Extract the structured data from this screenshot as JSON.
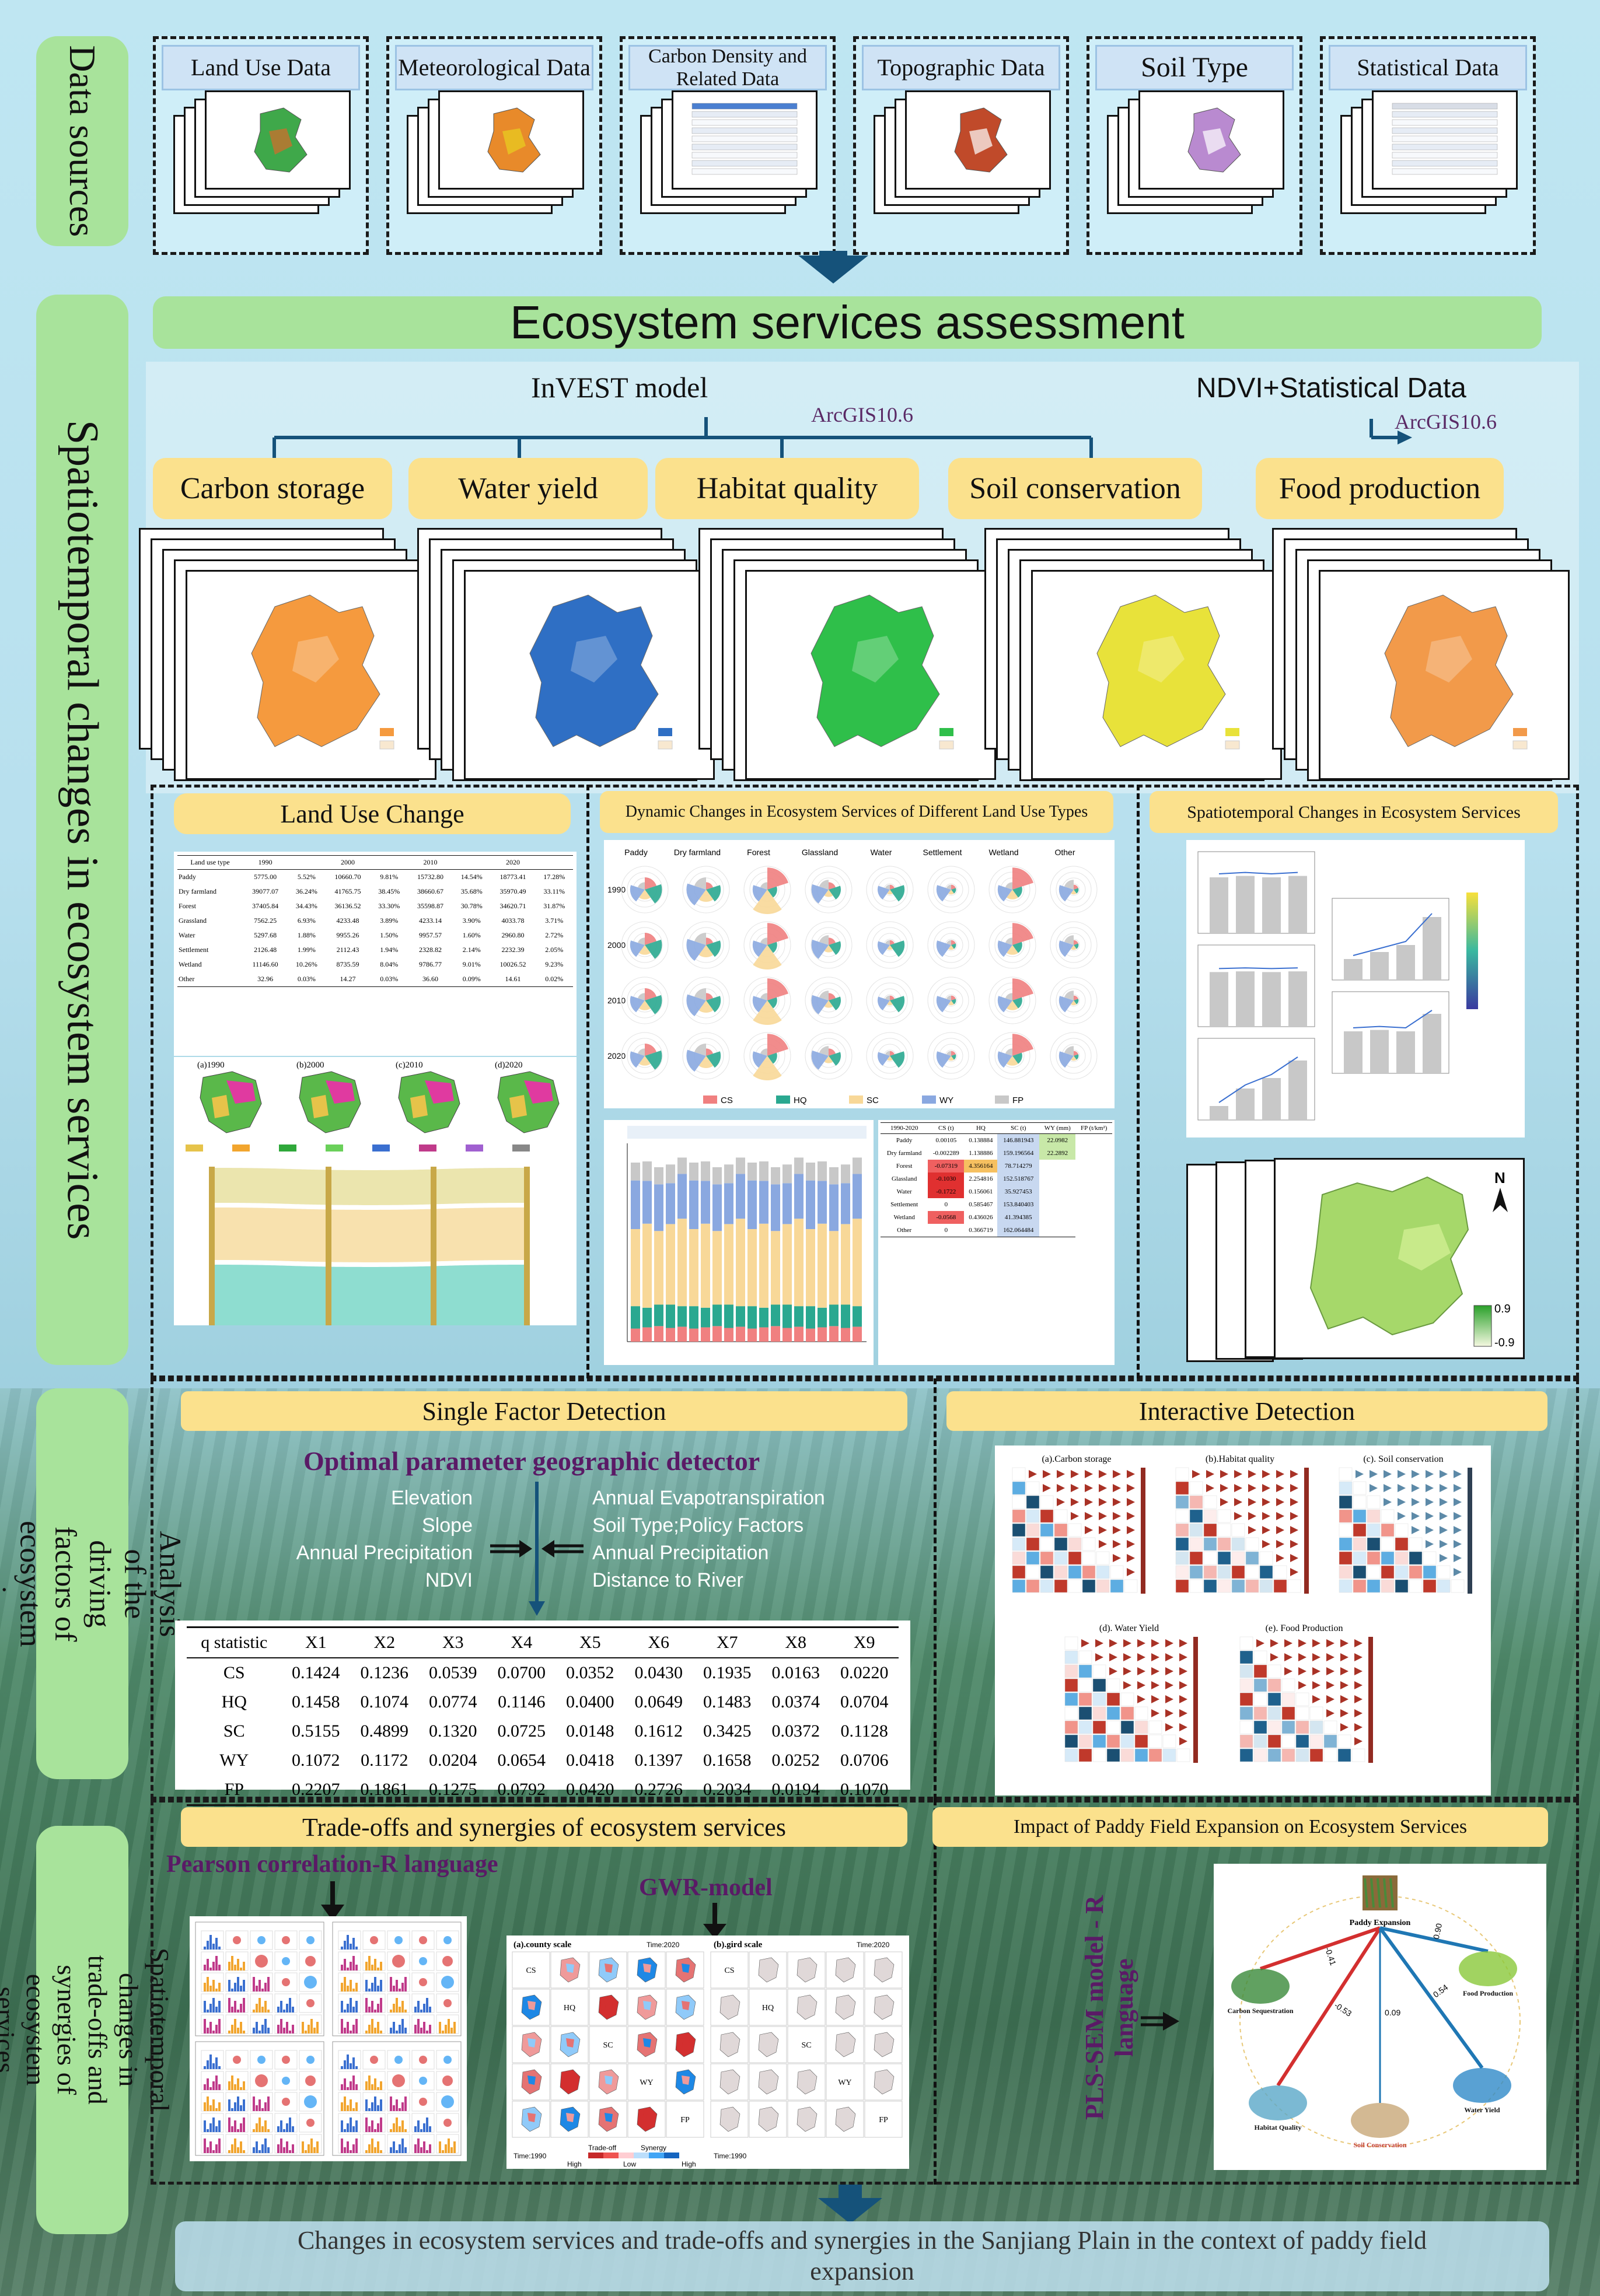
{
  "sidebar": {
    "data_sources": "Data sources",
    "spatiotemporal": "Spatiotemporal changes in ecosystem services",
    "driving_factors": "Analysis of the driving factors of ecosystem services",
    "tradeoffs": "Spatiotemporal changes in trade-offs and synergies of ecosystem services"
  },
  "data_sources": [
    {
      "label": "Land Use Data"
    },
    {
      "label": "Meteorological Data"
    },
    {
      "label": "Carbon Density and Related Data"
    },
    {
      "label": "Topographic Data"
    },
    {
      "label": "Soil Type"
    },
    {
      "label": "Statistical Data"
    }
  ],
  "assessment": {
    "title": "Ecosystem services assessment",
    "invest": "InVEST  model",
    "arcgis": "ArcGIS10.6",
    "ndvi": "NDVI+Statistical Data",
    "arcgis2": "ArcGIS10.6"
  },
  "services": [
    {
      "label": "Carbon storage",
      "color": "#f59a3e"
    },
    {
      "label": "Water yield",
      "color": "#2f6fc4"
    },
    {
      "label": "Habitat quality",
      "color": "#2fbf4a"
    },
    {
      "label": "Soil conservation",
      "color": "#e8e23a"
    },
    {
      "label": "Food production",
      "color": "#f29a4a"
    }
  ],
  "lower_panels": {
    "land_use_change": "Land Use Change",
    "dynamic": "Dynamic Changes in Ecosystem Services of Different Land Use Types",
    "spatio": "Spatiotemporal Changes in Ecosystem Services",
    "legend_hi": "0.9",
    "legend_lo": "-0.9"
  },
  "land_use_table": {
    "header": [
      "Land use type",
      "1990",
      "",
      "2000",
      "",
      "2010",
      "",
      "2020",
      ""
    ],
    "rows": [
      [
        "Paddy",
        "5775.00",
        "5.52%",
        "10660.70",
        "9.81%",
        "15732.80",
        "14.54%",
        "18773.41",
        "17.28%"
      ],
      [
        "Dry farmland",
        "39077.07",
        "36.24%",
        "41765.75",
        "38.45%",
        "38660.67",
        "35.68%",
        "35970.49",
        "33.11%"
      ],
      [
        "Forest",
        "37405.84",
        "34.43%",
        "36136.52",
        "33.30%",
        "35598.87",
        "30.78%",
        "34620.71",
        "31.87%"
      ],
      [
        "Grassland",
        "7562.25",
        "6.93%",
        "4233.48",
        "3.89%",
        "4233.14",
        "3.90%",
        "4033.78",
        "3.71%"
      ],
      [
        "Water",
        "5297.68",
        "1.88%",
        "9955.26",
        "1.50%",
        "9957.57",
        "1.60%",
        "2960.80",
        "2.72%"
      ],
      [
        "Settlement",
        "2126.48",
        "1.99%",
        "2112.43",
        "1.94%",
        "2328.82",
        "2.14%",
        "2232.39",
        "2.05%"
      ],
      [
        "Wetland",
        "11146.60",
        "10.26%",
        "8735.59",
        "8.04%",
        "9786.77",
        "9.01%",
        "10026.52",
        "9.23%"
      ],
      [
        "Other",
        "32.96",
        "0.03%",
        "14.27",
        "0.03%",
        "36.60",
        "0.09%",
        "14.61",
        "0.02%"
      ]
    ]
  },
  "map_years": [
    "(a)1990",
    "(b)2000",
    "(c)2010",
    "(d)2020"
  ],
  "dynamic_cols": [
    "Paddy",
    "Dry farmland",
    "Forest",
    "Glassland",
    "Water",
    "Settlement",
    "Wetland",
    "Other"
  ],
  "dynamic_rows": [
    "1990",
    "2000",
    "2010",
    "2020"
  ],
  "dynamic_legend": [
    "CS",
    "HQ",
    "SC",
    "WY",
    "FP"
  ],
  "change_table": {
    "header": [
      "1990-2020",
      "CS (t)",
      "HQ",
      "SC (t)",
      "WY (mm)",
      "FP (t/km²)"
    ],
    "rows": [
      [
        "Paddy",
        "0.00105",
        "0.138884",
        "146.881943",
        "22.0982"
      ],
      [
        "Dry farmland",
        "-0.002289",
        "1.138886",
        "159.196564",
        "22.2892"
      ],
      [
        "Forest",
        "-0.07319",
        "4.356164",
        "78.714279",
        ""
      ],
      [
        "Glassland",
        "-0.1030",
        "2.254816",
        "152.518767",
        ""
      ],
      [
        "Water",
        "-0.1722",
        "0.156061",
        "35.927453",
        ""
      ],
      [
        "Settlement",
        "0",
        "0.585467",
        "153.840403",
        ""
      ],
      [
        "Wetland",
        "-0.0568",
        "0.436026",
        "41.394385",
        ""
      ],
      [
        "Other",
        "0",
        "0.366719",
        "162.064484",
        ""
      ]
    ]
  },
  "single_factor": {
    "title": "Single Factor Detection",
    "detector": "Optimal parameter geographic detector",
    "left_factors": [
      "Elevation",
      "Slope",
      "Annual Precipitation",
      "NDVI"
    ],
    "right_factors": [
      "Annual Evapotranspiration",
      "Soil Type;Policy Factors",
      "Annual Precipitation",
      "Distance to River"
    ],
    "header": [
      "q statistic",
      "X1",
      "X2",
      "X3",
      "X4",
      "X5",
      "X6",
      "X7",
      "X8",
      "X9"
    ],
    "rows": [
      [
        "CS",
        "0.1424",
        "0.1236",
        "0.0539",
        "0.0700",
        "0.0352",
        "0.0430",
        "0.1935",
        "0.0163",
        "0.0220"
      ],
      [
        "HQ",
        "0.1458",
        "0.1074",
        "0.0774",
        "0.1146",
        "0.0400",
        "0.0649",
        "0.1483",
        "0.0374",
        "0.0704"
      ],
      [
        "SC",
        "0.5155",
        "0.4899",
        "0.1320",
        "0.0725",
        "0.0148",
        "0.1612",
        "0.3425",
        "0.0372",
        "0.1128"
      ],
      [
        "WY",
        "0.1072",
        "0.1172",
        "0.0204",
        "0.0654",
        "0.0418",
        "0.1397",
        "0.1658",
        "0.0252",
        "0.0706"
      ],
      [
        "FP",
        "0.2207",
        "0.1861",
        "0.1275",
        "0.0792",
        "0.0420",
        "0.2726",
        "0.2034",
        "0.0194",
        "0.1070"
      ]
    ]
  },
  "interactive": {
    "title": "Interactive Detection",
    "panels": [
      "(a).Carbon storage",
      "(b).Habitat quality",
      "(c). Soil conservation",
      "(d). Water Yield",
      "(e). Food Production"
    ]
  },
  "tradeoffs": {
    "title": "Trade-offs and synergies of ecosystem services",
    "pearson": "Pearson correlation-R language",
    "gwr": "GWR-model",
    "county": "(a).county scale",
    "grid": "(b).gird scale",
    "rows": [
      "CS",
      "HQ",
      "SC",
      "WY",
      "FP"
    ],
    "time_top": "Time:2020",
    "time_bottom": "Time:1990",
    "legend_tradeoff": "Trade-off",
    "legend_synergy": "Synergy",
    "legend_high": "High",
    "legend_low": "Low"
  },
  "paddy": {
    "title": "Impact of Paddy Field Expansion on Ecosystem Services",
    "pls": "PLS-SEM model - R language",
    "center": "Paddy Expansion",
    "nodes": [
      "Carbon Sequestration",
      "Habitat Quality",
      "Soil Conservation",
      "Water Yield",
      "Food Production"
    ],
    "coefs": [
      "-0.41",
      "-0.53",
      "0.09",
      "0.54",
      "0.90"
    ]
  },
  "footer": "Changes in ecosystem services and trade-offs and synergies in the Sanjiang Plain in the context of paddy field expansion"
}
